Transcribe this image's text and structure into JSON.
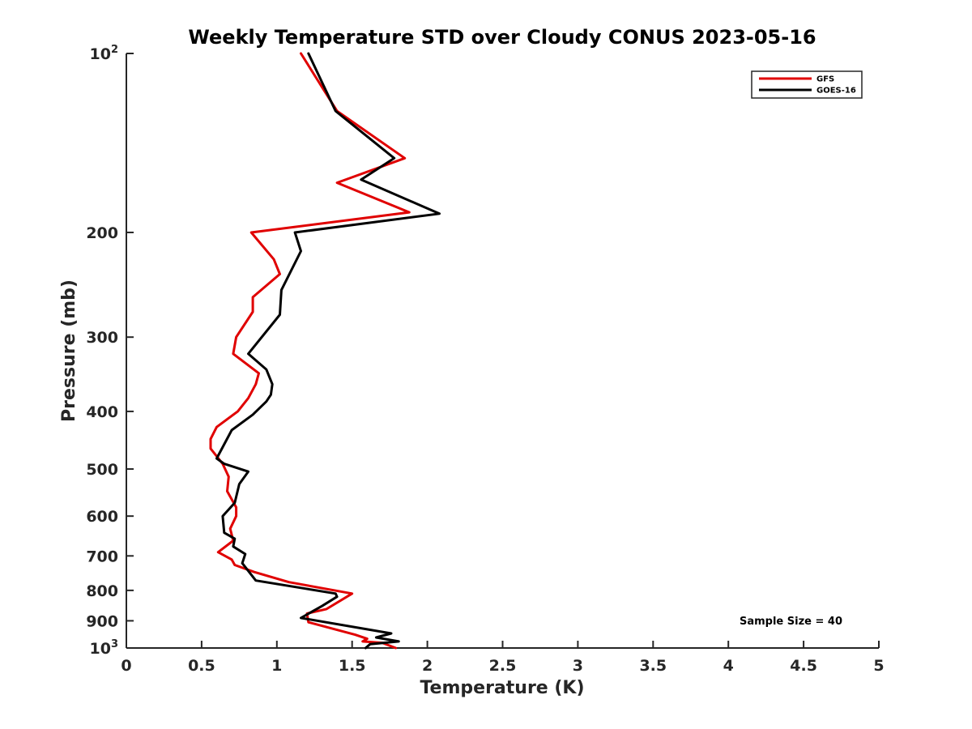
{
  "chart_data": {
    "type": "line",
    "title": "Weekly Temperature STD over Cloudy CONUS 2023-05-16",
    "xlabel": "Temperature (K)",
    "ylabel": "Pressure (mb)",
    "xlim": [
      0,
      5
    ],
    "ylim": [
      1000,
      100
    ],
    "yscale": "log",
    "x_ticks": [
      "0",
      "0.5",
      "1",
      "1.5",
      "2",
      "2.5",
      "3",
      "3.5",
      "4",
      "4.5",
      "5"
    ],
    "x_tick_values": [
      0,
      0.5,
      1,
      1.5,
      2,
      2.5,
      3,
      3.5,
      4,
      4.5,
      5
    ],
    "y_ticks": [
      {
        "value": 100,
        "label": "10",
        "exp": "2"
      },
      {
        "value": 200,
        "label": "200"
      },
      {
        "value": 300,
        "label": "300"
      },
      {
        "value": 400,
        "label": "400"
      },
      {
        "value": 500,
        "label": "500"
      },
      {
        "value": 600,
        "label": "600"
      },
      {
        "value": 700,
        "label": "700"
      },
      {
        "value": 800,
        "label": "800"
      },
      {
        "value": 900,
        "label": "900"
      },
      {
        "value": 1000,
        "label": "10",
        "exp": "3"
      }
    ],
    "legend_position": "top-right",
    "annotation": "Sample Size = 40",
    "series": [
      {
        "name": "GFS",
        "color": "#e00000",
        "points": [
          [
            1.16,
            100
          ],
          [
            1.4,
            125
          ],
          [
            1.85,
            150
          ],
          [
            1.4,
            165
          ],
          [
            1.88,
            185
          ],
          [
            0.83,
            200
          ],
          [
            0.98,
            222
          ],
          [
            1.02,
            235
          ],
          [
            0.84,
            257
          ],
          [
            0.84,
            272
          ],
          [
            0.73,
            300
          ],
          [
            0.71,
            320
          ],
          [
            0.88,
            345
          ],
          [
            0.86,
            360
          ],
          [
            0.81,
            380
          ],
          [
            0.74,
            400
          ],
          [
            0.6,
            425
          ],
          [
            0.56,
            445
          ],
          [
            0.56,
            462
          ],
          [
            0.64,
            490
          ],
          [
            0.68,
            515
          ],
          [
            0.67,
            545
          ],
          [
            0.73,
            580
          ],
          [
            0.73,
            600
          ],
          [
            0.69,
            630
          ],
          [
            0.71,
            660
          ],
          [
            0.61,
            690
          ],
          [
            0.7,
            710
          ],
          [
            0.72,
            725
          ],
          [
            0.85,
            745
          ],
          [
            1.08,
            775
          ],
          [
            1.5,
            810
          ],
          [
            1.33,
            860
          ],
          [
            1.2,
            875
          ],
          [
            1.21,
            905
          ],
          [
            1.52,
            950
          ],
          [
            1.6,
            965
          ],
          [
            1.57,
            975
          ],
          [
            1.7,
            980
          ],
          [
            1.79,
            1000
          ]
        ]
      },
      {
        "name": "GOES-16",
        "color": "#000000",
        "points": [
          [
            1.21,
            100
          ],
          [
            1.39,
            125
          ],
          [
            1.78,
            150
          ],
          [
            1.56,
            163
          ],
          [
            2.08,
            186
          ],
          [
            1.12,
            200
          ],
          [
            1.16,
            215
          ],
          [
            1.03,
            250
          ],
          [
            1.02,
            275
          ],
          [
            0.81,
            320
          ],
          [
            0.93,
            340
          ],
          [
            0.97,
            360
          ],
          [
            0.96,
            375
          ],
          [
            0.93,
            385
          ],
          [
            0.84,
            405
          ],
          [
            0.7,
            430
          ],
          [
            0.6,
            480
          ],
          [
            0.65,
            490
          ],
          [
            0.81,
            505
          ],
          [
            0.75,
            530
          ],
          [
            0.72,
            570
          ],
          [
            0.64,
            600
          ],
          [
            0.65,
            640
          ],
          [
            0.72,
            655
          ],
          [
            0.71,
            675
          ],
          [
            0.79,
            695
          ],
          [
            0.77,
            720
          ],
          [
            0.86,
            770
          ],
          [
            1.39,
            810
          ],
          [
            1.4,
            820
          ],
          [
            1.3,
            850
          ],
          [
            1.16,
            890
          ],
          [
            1.76,
            945
          ],
          [
            1.66,
            960
          ],
          [
            1.81,
            975
          ],
          [
            1.62,
            985
          ],
          [
            1.59,
            1000
          ]
        ]
      }
    ]
  }
}
